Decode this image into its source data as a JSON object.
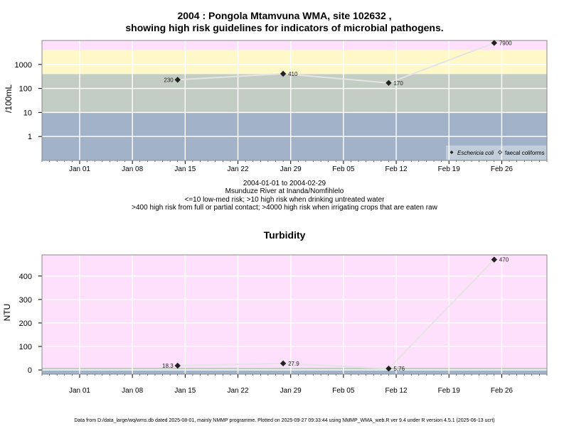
{
  "chart_data": [
    {
      "type": "line",
      "title": "2004 : Pongola Mtamvuna WMA, site 102632 ,",
      "subtitle": "showing high risk guidelines for indicators of microbial pathogens.",
      "ylabel": "/100mL",
      "yscale": "log",
      "yticks": [
        1,
        10,
        100,
        1000
      ],
      "ylim": [
        0.1,
        10000
      ],
      "xlim": [
        "2003-12-27",
        "2004-03-03"
      ],
      "xticks": [
        "Jan 01",
        "Jan 08",
        "Jan 15",
        "Jan 22",
        "Jan 29",
        "Feb 05",
        "Feb 12",
        "Feb 19",
        "Feb 26"
      ],
      "grid": true,
      "bands": [
        {
          "from": 0.1,
          "to": 10,
          "color": "#a2b2c8"
        },
        {
          "from": 10,
          "to": 400,
          "color": "#c3cdc4"
        },
        {
          "from": 400,
          "to": 4000,
          "color": "#fff8c8"
        },
        {
          "from": 4000,
          "to": 10000,
          "color": "#ffe0fc"
        }
      ],
      "series": [
        {
          "name": "Eschericia coli",
          "marker": "diamond-filled",
          "x": [
            "2004-01-14",
            "2004-01-28",
            "2004-02-11",
            "2004-02-25"
          ],
          "values": [
            230,
            410,
            170,
            7900
          ],
          "labels": [
            "230",
            "410",
            "170",
            "7900"
          ]
        }
      ],
      "legend": {
        "position": "bottom-right",
        "entries": [
          "Eschericia coli",
          "faecal coliforms"
        ]
      },
      "captions": [
        "2004-01-01 to 2004-02-29",
        "Msunduze River at Inanda/Nomfihlelo",
        "<=10 low-med risk; >10 high risk when drinking untreated water",
        ">400 high risk from full or partial contact; >4000 high risk when irrigating crops that are eaten raw"
      ]
    },
    {
      "type": "line",
      "title": "Turbidity",
      "ylabel": "NTU",
      "yscale": "linear",
      "yticks": [
        0,
        100,
        200,
        300,
        400
      ],
      "ylim": [
        -18,
        490
      ],
      "xlim": [
        "2003-12-27",
        "2004-03-03"
      ],
      "xticks": [
        "Jan 01",
        "Jan 08",
        "Jan 15",
        "Jan 22",
        "Jan 29",
        "Feb 05",
        "Feb 12",
        "Feb 19",
        "Feb 26"
      ],
      "grid": true,
      "bands": [
        {
          "from": -18,
          "to": 1,
          "color": "#a2b2c8"
        },
        {
          "from": 1,
          "to": 10,
          "color": "#c3cdc4"
        },
        {
          "from": 10,
          "to": 490,
          "color": "#ffe0fc"
        }
      ],
      "series": [
        {
          "marker": "diamond-filled",
          "x": [
            "2004-01-14",
            "2004-01-28",
            "2004-02-11",
            "2004-02-25"
          ],
          "values": [
            18.3,
            27.9,
            5.76,
            470
          ],
          "labels": [
            "18.3",
            "27.9",
            "5.76",
            "470"
          ]
        }
      ]
    }
  ],
  "footer": "Data from D:/data_large/wq/wms.db dated 2025-08-01, mainly NMMP programme. Plotted on 2025-09-27 09:33:44 using NMMP_WMA_web.R ver 9.4 under R version 4.5.1 (2025-06-13 ucrt)"
}
